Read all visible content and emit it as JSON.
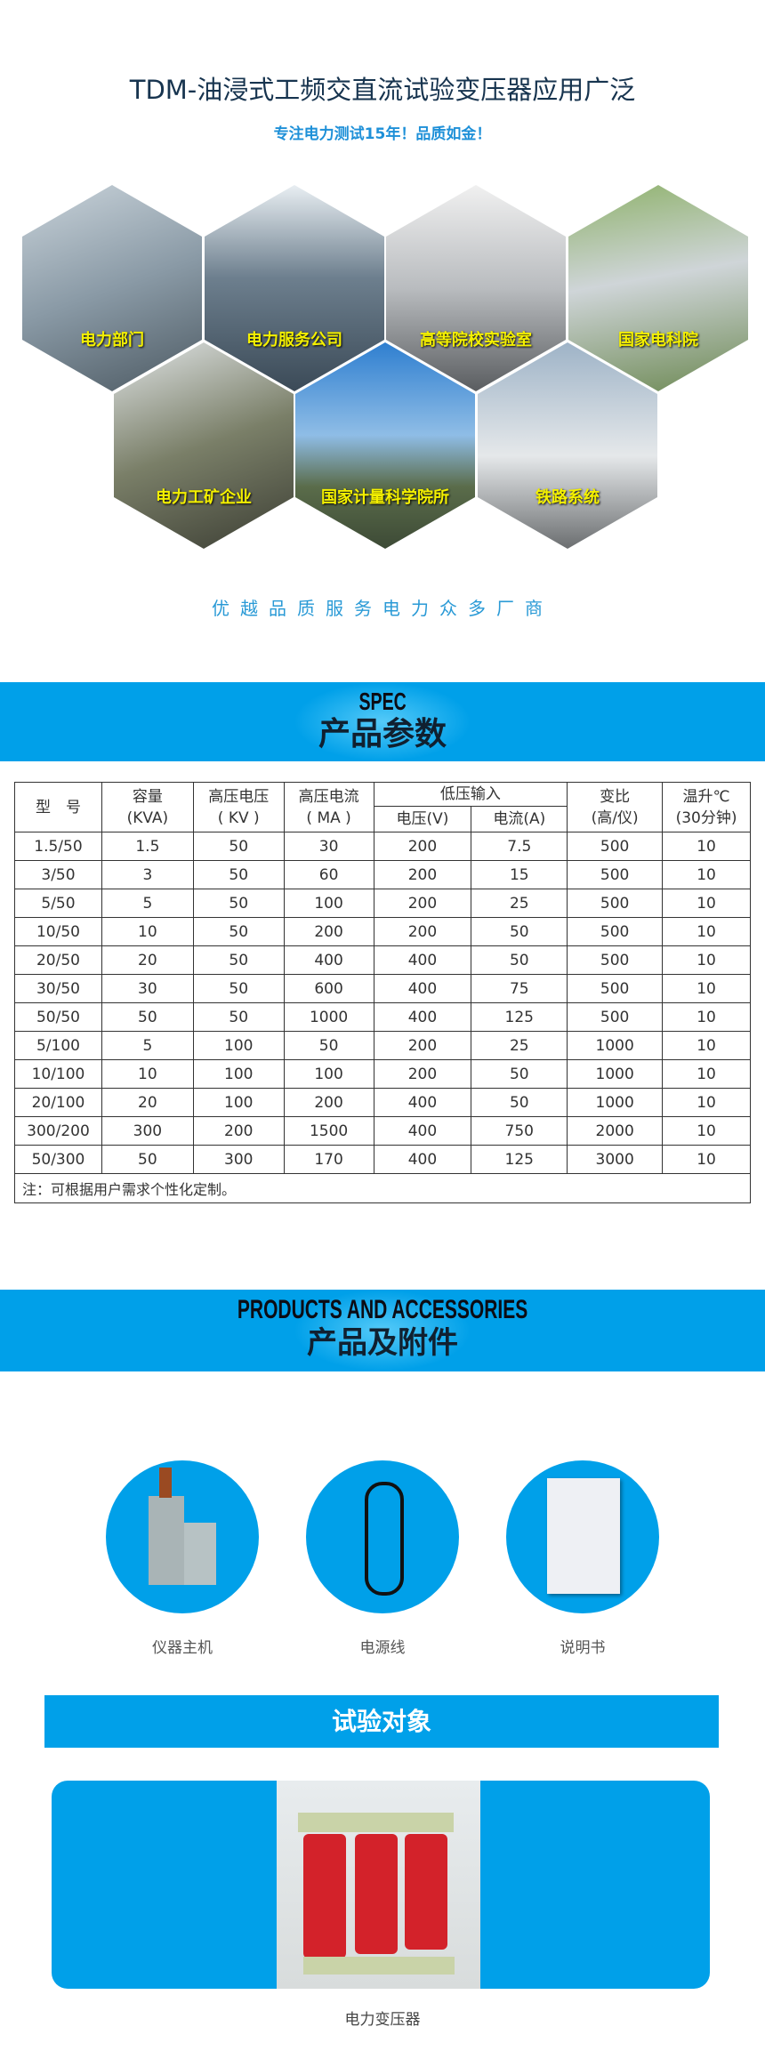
{
  "header": {
    "title": "TDM-油浸式工频交直流试验变压器应用广泛",
    "subtitle": "专注电力测试15年！品质如金！"
  },
  "applications": [
    {
      "label": "电力部门"
    },
    {
      "label": "电力服务公司"
    },
    {
      "label": "高等院校实验室"
    },
    {
      "label": "国家电科院"
    },
    {
      "label": "电力工矿企业"
    },
    {
      "label": "国家计量科学院所"
    },
    {
      "label": "铁路系统"
    }
  ],
  "slogan": "优越品质服务电力众多厂商",
  "spec": {
    "en": "SPEC",
    "cn": "产品参数"
  },
  "table": {
    "headers": {
      "model": "型　号",
      "capacity": "容量",
      "capacity_unit": "(KVA)",
      "hv": "高压电压",
      "hv_unit": "( KV )",
      "hc": "高压电流",
      "hc_unit": "( MA )",
      "lv_input": "低压输入",
      "lv": "电压(V)",
      "lc": "电流(A)",
      "ratio": "变比",
      "ratio_unit": "(高/仪)",
      "temp": "温升℃",
      "temp_unit": "(30分钟)"
    },
    "rows": [
      [
        "1.5/50",
        "1.5",
        "50",
        "30",
        "200",
        "7.5",
        "500",
        "10"
      ],
      [
        "3/50",
        "3",
        "50",
        "60",
        "200",
        "15",
        "500",
        "10"
      ],
      [
        "5/50",
        "5",
        "50",
        "100",
        "200",
        "25",
        "500",
        "10"
      ],
      [
        "10/50",
        "10",
        "50",
        "200",
        "200",
        "50",
        "500",
        "10"
      ],
      [
        "20/50",
        "20",
        "50",
        "400",
        "400",
        "50",
        "500",
        "10"
      ],
      [
        "30/50",
        "30",
        "50",
        "600",
        "400",
        "75",
        "500",
        "10"
      ],
      [
        "50/50",
        "50",
        "50",
        "1000",
        "400",
        "125",
        "500",
        "10"
      ],
      [
        "5/100",
        "5",
        "100",
        "50",
        "200",
        "25",
        "1000",
        "10"
      ],
      [
        "10/100",
        "10",
        "100",
        "100",
        "200",
        "50",
        "1000",
        "10"
      ],
      [
        "20/100",
        "20",
        "100",
        "200",
        "400",
        "50",
        "1000",
        "10"
      ],
      [
        "300/200",
        "300",
        "200",
        "1500",
        "400",
        "750",
        "2000",
        "10"
      ],
      [
        "50/300",
        "50",
        "300",
        "170",
        "400",
        "125",
        "3000",
        "10"
      ]
    ],
    "note": "注：可根据用户需求个性化定制。"
  },
  "accessories": {
    "en": "PRODUCTS AND ACCESSORIES",
    "cn": "产品及附件",
    "items": [
      {
        "label": "仪器主机"
      },
      {
        "label": "电源线"
      },
      {
        "label": "说明书"
      }
    ]
  },
  "test_object": {
    "title": "试验对象",
    "caption": "电力变压器"
  },
  "colors": {
    "brand_blue": "#00a0e9",
    "label_yellow": "#f4f000"
  }
}
